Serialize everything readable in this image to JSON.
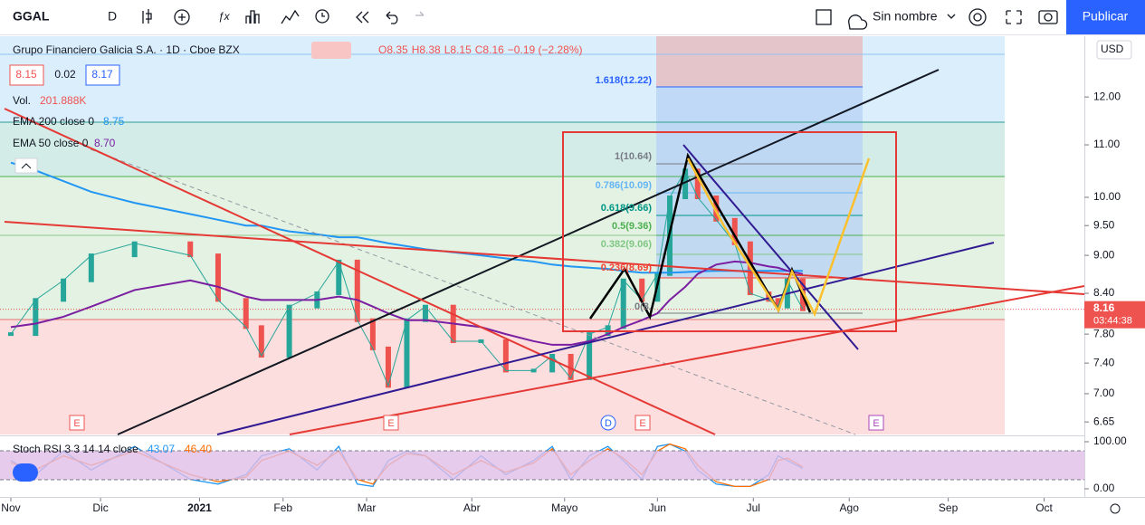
{
  "toolbar": {
    "symbol": "GGAL",
    "interval": "D",
    "layout_name": "Sin nombre",
    "publish": "Publicar"
  },
  "chart_data": {
    "type": "line",
    "title": "Grupo Financiero Galicia S.A. · 1D · Cboe BZX",
    "ohlc": [
      "O8.35",
      "H8.38",
      "L8.15",
      "C8.16",
      "−0.19 (−2.28%)"
    ],
    "bid": "8.15",
    "spread": "0.02",
    "ask": "8.17",
    "volume_label": "Vol.",
    "volume": "201.888K",
    "currency": "USD",
    "last_price": "8.16",
    "countdown": "03:44:38",
    "x": [
      0,
      8,
      17,
      26,
      40,
      58,
      67,
      76,
      81,
      90,
      99,
      106,
      112,
      117,
      122,
      128,
      134,
      143,
      152,
      160,
      169,
      175,
      181,
      187,
      193,
      198,
      204,
      209,
      213,
      218,
      222,
      228,
      234,
      239,
      245,
      248,
      251,
      256
    ],
    "xlim": [
      -3.5,
      347
    ],
    "xticks": [
      {
        "value": 0,
        "label": "Nov"
      },
      {
        "value": 29,
        "label": "Dic"
      },
      {
        "value": 61,
        "label": "2021"
      },
      {
        "value": 88,
        "label": "Feb"
      },
      {
        "value": 115,
        "label": "Mar"
      },
      {
        "value": 149,
        "label": "Abr"
      },
      {
        "value": 179,
        "label": "Mayo"
      },
      {
        "value": 209,
        "label": "Jun"
      },
      {
        "value": 240,
        "label": "Jul"
      },
      {
        "value": 271,
        "label": "Ago"
      },
      {
        "value": 303,
        "label": "Sep"
      },
      {
        "value": 334,
        "label": "Oct"
      }
    ],
    "ylim": [
      6.5,
      13.4
    ],
    "log_scale": true,
    "yticks": [
      {
        "value": 12,
        "label": "12.00"
      },
      {
        "value": 11,
        "label": "11.00"
      },
      {
        "value": 10,
        "label": "10.00"
      },
      {
        "value": 9.5,
        "label": "9.50"
      },
      {
        "value": 9,
        "label": "9.00"
      },
      {
        "value": 8.4,
        "label": "8.40"
      },
      {
        "value": 7.8,
        "label": "7.80"
      },
      {
        "value": 7.4,
        "label": "7.40"
      },
      {
        "value": 7,
        "label": "7.00"
      },
      {
        "value": 6.65,
        "label": "6.65"
      }
    ],
    "series": [
      {
        "name": "Close",
        "color": "#26a69a",
        "values": [
          7.8,
          8.3,
          8.6,
          9.0,
          9.2,
          9.0,
          8.3,
          7.9,
          7.5,
          8.2,
          8.4,
          8.9,
          8.0,
          7.6,
          7.1,
          8.0,
          8.2,
          7.7,
          7.7,
          7.3,
          7.3,
          7.5,
          7.2,
          7.8,
          7.9,
          8.6,
          8.3,
          8.7,
          10.0,
          10.5,
          10.0,
          9.6,
          9.2,
          8.4,
          8.3,
          8.2,
          8.6,
          8.16
        ]
      },
      {
        "name": "EMA 200 close 0",
        "last_label": "8.75",
        "color": "#2196f3",
        "values": [
          10.65,
          10.5,
          10.3,
          10.1,
          9.9,
          9.7,
          9.6,
          9.5,
          9.5,
          9.4,
          9.35,
          9.3,
          9.3,
          9.25,
          9.2,
          9.15,
          9.1,
          9.05,
          9.0,
          8.95,
          8.9,
          8.85,
          8.82,
          8.8,
          8.78,
          8.75,
          8.72,
          8.72,
          8.72,
          8.73,
          8.74,
          8.75,
          8.75,
          8.75,
          8.75,
          8.75,
          8.75,
          8.75
        ]
      },
      {
        "name": "EMA 50 close 0",
        "last_label": "8.70",
        "color": "#7b1fa2",
        "values": [
          7.9,
          7.95,
          8.05,
          8.2,
          8.45,
          8.6,
          8.5,
          8.35,
          8.3,
          8.3,
          8.3,
          8.35,
          8.3,
          8.2,
          8.1,
          8.0,
          8.0,
          7.95,
          7.9,
          7.8,
          7.7,
          7.65,
          7.65,
          7.7,
          7.8,
          7.9,
          8.0,
          8.1,
          8.3,
          8.5,
          8.7,
          8.85,
          8.9,
          8.88,
          8.82,
          8.8,
          8.75,
          8.7
        ]
      }
    ],
    "fib_labels": [
      "1.618(12.22)",
      "1(10.64)",
      "0.786(10.09)",
      "0.618(9.66)",
      "0.5(9.36)",
      "0.382(9.06)",
      "0.236(8.69)",
      "0(8."
    ],
    "event_labels": [
      "E",
      "E",
      "D",
      "E",
      "E"
    ],
    "stoch": {
      "name": "Stoch RSI 3 3 14 14 close",
      "k_label": "43.07",
      "d_label": "46.40",
      "ylim": [
        0,
        100
      ],
      "yticks": [
        {
          "value": 100,
          "label": "100.00"
        },
        {
          "value": 0,
          "label": "0.00"
        }
      ],
      "k": {
        "color": "#2196f3",
        "values": [
          60,
          30,
          80,
          40,
          90,
          20,
          10,
          30,
          70,
          85,
          40,
          90,
          10,
          5,
          60,
          80,
          70,
          20,
          70,
          30,
          60,
          90,
          20,
          70,
          90,
          60,
          20,
          90,
          95,
          80,
          40,
          10,
          5,
          5,
          30,
          70,
          60,
          43.07
        ]
      },
      "d": {
        "color": "#ff6d00",
        "values": [
          55,
          40,
          70,
          50,
          80,
          30,
          15,
          25,
          60,
          80,
          50,
          80,
          20,
          10,
          50,
          75,
          70,
          30,
          60,
          35,
          55,
          85,
          30,
          60,
          85,
          65,
          30,
          80,
          95,
          85,
          50,
          15,
          5,
          5,
          20,
          60,
          65,
          46.4
        ]
      }
    }
  }
}
